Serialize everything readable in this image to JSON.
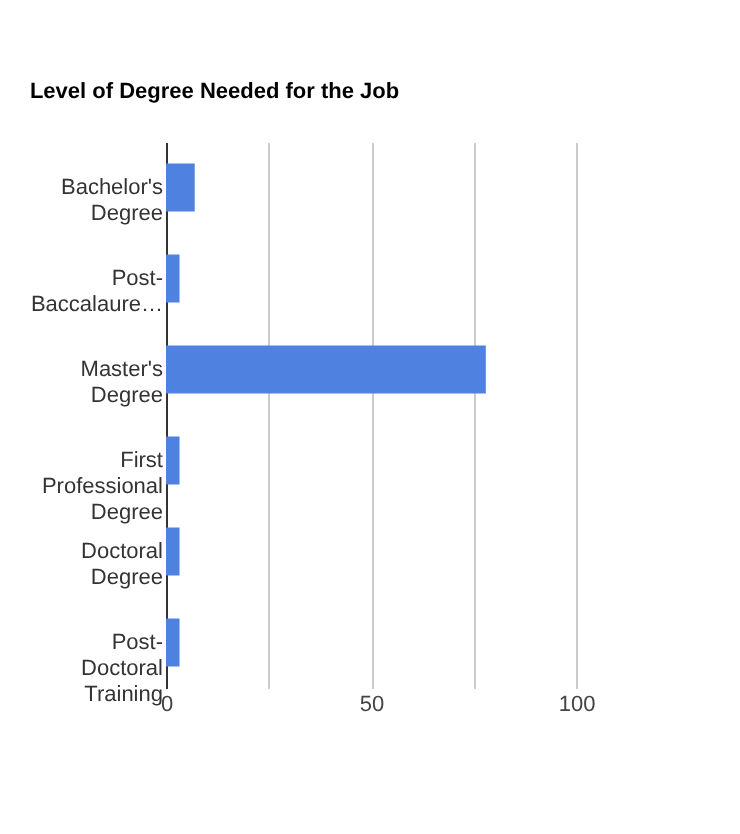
{
  "chart_data": {
    "type": "bar",
    "orientation": "horizontal",
    "title": "Level of Degree Needed for the Job",
    "categories": [
      "Bachelor's Degree",
      "Post-Baccalaure…",
      "Master's Degree",
      "First Professional Degree",
      "Doctoral Degree",
      "Post-Doctoral Training"
    ],
    "values": [
      7,
      3.3,
      78,
      3.3,
      3.3,
      3.3
    ],
    "color": "#4f81e0",
    "xlim": [
      0,
      100
    ],
    "xticks": [
      0,
      {
        "value": 25,
        "label": null
      },
      50,
      {
        "value": 75,
        "label": null
      },
      100
    ],
    "grid": "x"
  }
}
